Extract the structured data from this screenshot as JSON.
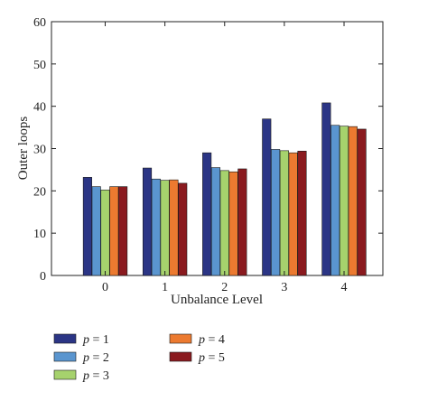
{
  "chart_data": {
    "type": "bar",
    "categories": [
      "0",
      "1",
      "2",
      "3",
      "4"
    ],
    "xlabel": "Unbalance Level",
    "ylabel": "Outer loops",
    "ylim": [
      0,
      60
    ],
    "yticks": [
      0,
      10,
      20,
      30,
      40,
      50,
      60
    ],
    "grid": false,
    "legend_position": "bottom",
    "series": [
      {
        "name": "p = 1",
        "symbol": "p",
        "label_suffix": " = 1",
        "color": "#2b3585",
        "values": [
          23.2,
          25.4,
          29.0,
          37.0,
          40.8
        ]
      },
      {
        "name": "p = 2",
        "symbol": "p",
        "label_suffix": " = 2",
        "color": "#5a95cf",
        "values": [
          21.0,
          22.8,
          25.5,
          29.8,
          35.5
        ]
      },
      {
        "name": "p = 3",
        "symbol": "p",
        "label_suffix": " = 3",
        "color": "#a6d26d",
        "values": [
          20.2,
          22.5,
          24.8,
          29.5,
          35.3
        ]
      },
      {
        "name": "p = 4",
        "symbol": "p",
        "label_suffix": " = 4",
        "color": "#ec7a30",
        "values": [
          21.0,
          22.6,
          24.5,
          29.0,
          35.2
        ]
      },
      {
        "name": "p = 5",
        "symbol": "p",
        "label_suffix": " = 5",
        "color": "#8a1a1f",
        "values": [
          21.0,
          21.8,
          25.2,
          29.4,
          34.6
        ]
      }
    ]
  }
}
